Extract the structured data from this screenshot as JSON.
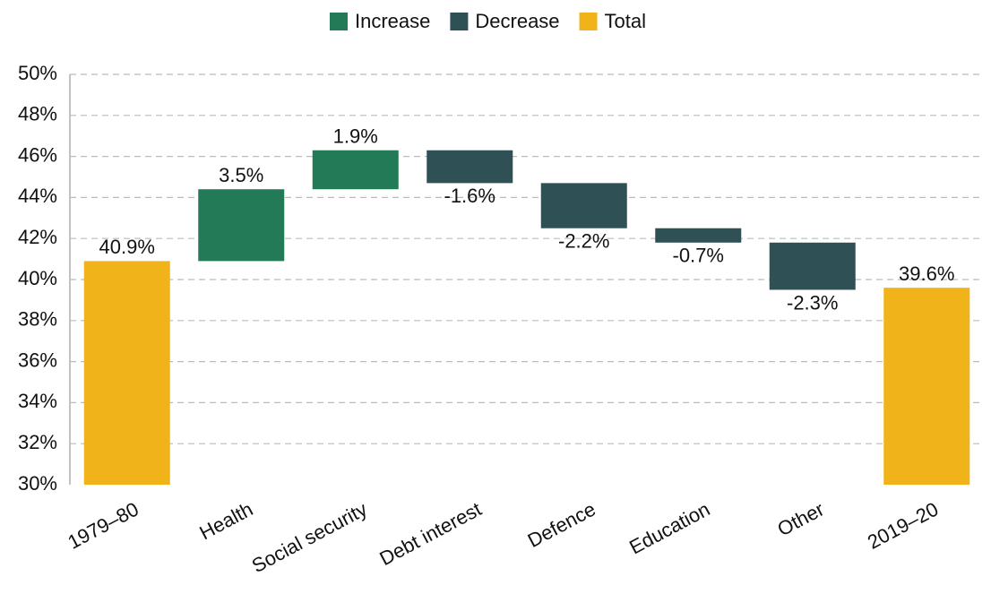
{
  "chart_data": {
    "type": "waterfall",
    "categories": [
      "1979–80",
      "Health",
      "Social security",
      "Debt interest",
      "Defence",
      "Education",
      "Other",
      "2019–20"
    ],
    "values": [
      40.9,
      3.5,
      1.9,
      -1.6,
      -2.2,
      -0.7,
      -2.3,
      39.6
    ],
    "value_labels": [
      "40.9%",
      "3.5%",
      "1.9%",
      "-1.6%",
      "-2.2%",
      "-0.7%",
      "-2.3%",
      "39.6%"
    ],
    "legend": [
      {
        "name": "Increase",
        "color": "#237a57"
      },
      {
        "name": "Decrease",
        "color": "#2f5055"
      },
      {
        "name": "Total",
        "color": "#f0b41a"
      }
    ],
    "ylim": [
      30,
      50
    ],
    "yticks": [
      {
        "value": 30,
        "label": "30%"
      },
      {
        "value": 32,
        "label": "32%"
      },
      {
        "value": 34,
        "label": "34%"
      },
      {
        "value": 36,
        "label": "36%"
      },
      {
        "value": 38,
        "label": "38%"
      },
      {
        "value": 40,
        "label": "40%"
      },
      {
        "value": 42,
        "label": "42%"
      },
      {
        "value": 44,
        "label": "44%"
      },
      {
        "value": 46,
        "label": "46%"
      },
      {
        "value": 48,
        "label": "48%"
      },
      {
        "value": 50,
        "label": "50%"
      }
    ],
    "grid": true
  }
}
